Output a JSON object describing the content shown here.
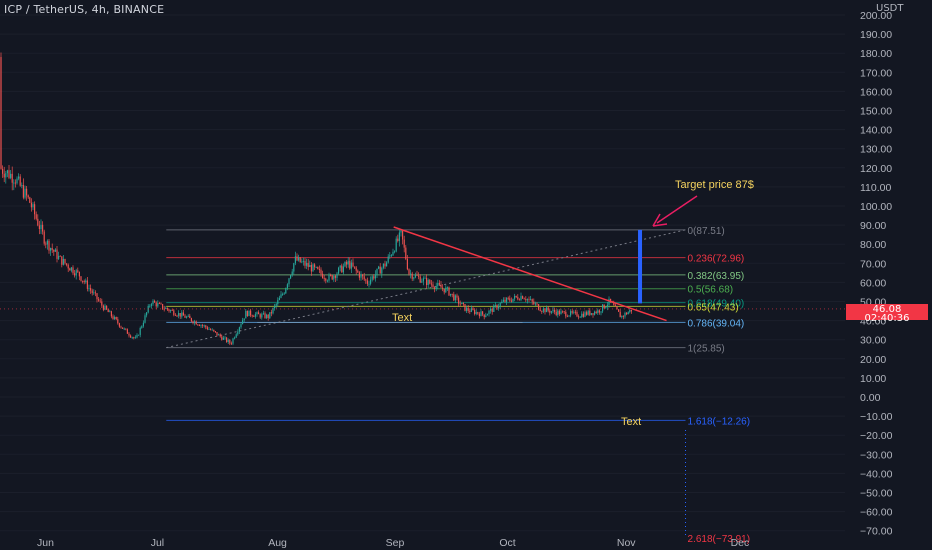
{
  "header": {
    "symbol_line": "ICP / TetherUS, 4h, BINANCE",
    "currency": "USDT"
  },
  "last_price": {
    "value": "46.08",
    "countdown": "02:40:36",
    "color": "#f23645"
  },
  "annotations": {
    "target": "Target price 87$",
    "text1": "Text",
    "text2": "Text"
  },
  "colors": {
    "background": "#131722",
    "axis_text": "#b2b5be",
    "trendline": "#f23645",
    "target_bar": "#2962ff",
    "annotation_text": "#f5d35f",
    "arrow": "#e91e63"
  },
  "chart_data": {
    "type": "candlestick",
    "title": "ICP / TetherUS, 4h, BINANCE",
    "y_unit": "USDT",
    "ylim": [
      -75,
      205
    ],
    "y_ticks": [
      200,
      190,
      180,
      170,
      160,
      150,
      140,
      130,
      120,
      110,
      100,
      90,
      80,
      70,
      60,
      50,
      40,
      30,
      20,
      10,
      0,
      -10,
      -20,
      -30,
      -40,
      -50,
      -60,
      -70
    ],
    "x_ticks": [
      "Jun",
      "Jul",
      "Aug",
      "Sep",
      "Oct",
      "Nov",
      "Dec"
    ],
    "price_path": [
      {
        "t": "May 10",
        "p": 178
      },
      {
        "t": "May 11",
        "p": 160
      },
      {
        "t": "May 13",
        "p": 150
      },
      {
        "t": "May 16",
        "p": 135
      },
      {
        "t": "May 20",
        "p": 120
      },
      {
        "t": "May 24",
        "p": 115
      },
      {
        "t": "May 28",
        "p": 102
      },
      {
        "t": "Jun 1",
        "p": 82
      },
      {
        "t": "Jun 5",
        "p": 72
      },
      {
        "t": "Jun 10",
        "p": 64
      },
      {
        "t": "Jun 16",
        "p": 48
      },
      {
        "t": "Jun 22",
        "p": 35
      },
      {
        "t": "Jun 25",
        "p": 30
      },
      {
        "t": "Jun 29",
        "p": 50
      },
      {
        "t": "Jul 2",
        "p": 47
      },
      {
        "t": "Jul 8",
        "p": 42
      },
      {
        "t": "Jul 14",
        "p": 36
      },
      {
        "t": "Jul 20",
        "p": 28
      },
      {
        "t": "Jul 24",
        "p": 44
      },
      {
        "t": "Jul 30",
        "p": 42
      },
      {
        "t": "Aug 3",
        "p": 55
      },
      {
        "t": "Aug 6",
        "p": 72
      },
      {
        "t": "Aug 10",
        "p": 68
      },
      {
        "t": "Aug 15",
        "p": 62
      },
      {
        "t": "Aug 20",
        "p": 70
      },
      {
        "t": "Aug 25",
        "p": 60
      },
      {
        "t": "Aug 30",
        "p": 70
      },
      {
        "t": "Sep 1",
        "p": 78
      },
      {
        "t": "Sep 3",
        "p": 85
      },
      {
        "t": "Sep 5",
        "p": 65
      },
      {
        "t": "Sep 10",
        "p": 60
      },
      {
        "t": "Sep 15",
        "p": 56
      },
      {
        "t": "Sep 20",
        "p": 46
      },
      {
        "t": "Sep 25",
        "p": 43
      },
      {
        "t": "Sep 30",
        "p": 50
      },
      {
        "t": "Oct 5",
        "p": 53
      },
      {
        "t": "Oct 10",
        "p": 46
      },
      {
        "t": "Oct 15",
        "p": 44
      },
      {
        "t": "Oct 20",
        "p": 43
      },
      {
        "t": "Oct 25",
        "p": 45
      },
      {
        "t": "Oct 28",
        "p": 50
      },
      {
        "t": "Oct 31",
        "p": 42
      },
      {
        "t": "Nov 3",
        "p": 46
      }
    ],
    "fib_levels": [
      {
        "label": "0(87.51)",
        "value": 87.51,
        "color": "#787b86"
      },
      {
        "label": "0.236(72.96)",
        "value": 72.96,
        "color": "#f23645"
      },
      {
        "label": "0.382(63.95)",
        "value": 63.95,
        "color": "#81c784"
      },
      {
        "label": "0.5(56.68)",
        "value": 56.68,
        "color": "#4caf50"
      },
      {
        "label": "0.618(49.40)",
        "value": 49.4,
        "color": "#089981"
      },
      {
        "label": "0.65(47.43)",
        "value": 47.43,
        "color": "#cddc39"
      },
      {
        "label": "0.786(39.04)",
        "value": 39.04,
        "color": "#64b5f6"
      },
      {
        "label": "1(25.85)",
        "value": 25.85,
        "color": "#787b86"
      },
      {
        "label": "1.618(−12.26)",
        "value": -12.26,
        "color": "#2962ff"
      },
      {
        "label": "2.618(−73.91)",
        "value": -73.91,
        "color": "#f23645"
      }
    ],
    "fib_range": {
      "start": "Jul 3",
      "end": "Nov 17"
    },
    "fib_trend": {
      "start": {
        "t": "Jul 3",
        "p": 25.85
      },
      "end": {
        "t": "Nov 17",
        "p": 87.51
      }
    },
    "trendline": {
      "start": {
        "t": "Sep 1",
        "p": 89
      },
      "end": {
        "t": "Nov 12",
        "p": 40
      }
    },
    "support_line": {
      "start": {
        "t": "Jul 27",
        "p": 39
      },
      "end": {
        "t": "Oct 5",
        "p": 39
      }
    },
    "target_bar": {
      "t": "Nov 5",
      "from": 49,
      "to": 87.51
    },
    "last_price": 46.08
  }
}
